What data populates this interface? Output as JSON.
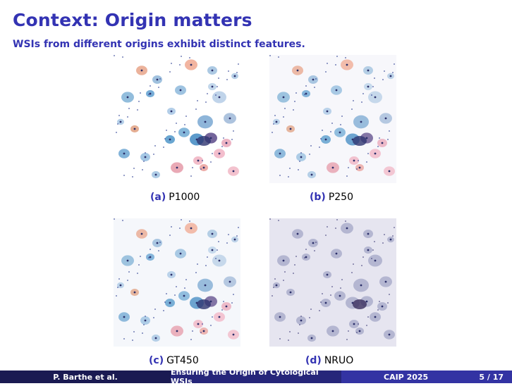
{
  "slide": {
    "title": "Context: Origin matters",
    "subtitle": "WSIs from different origins exhibit distinct features."
  },
  "panels": [
    {
      "id": "a",
      "tag": "(a)",
      "label": "P1000",
      "tint": "#ffffff"
    },
    {
      "id": "b",
      "tag": "(b)",
      "label": "P250",
      "tint": "#f7f7fb"
    },
    {
      "id": "c",
      "tag": "(c)",
      "label": "GT450",
      "tint": "#f5f7fb"
    },
    {
      "id": "d",
      "tag": "(d)",
      "label": "NRUO",
      "tint": "#e6e5f0"
    }
  ],
  "footer": {
    "author": "P. Barthe et al.",
    "talk_title": "Ensuring the Origin of Cytological WSIs",
    "venue": "CAIP 2025",
    "page": "5 / 17"
  }
}
